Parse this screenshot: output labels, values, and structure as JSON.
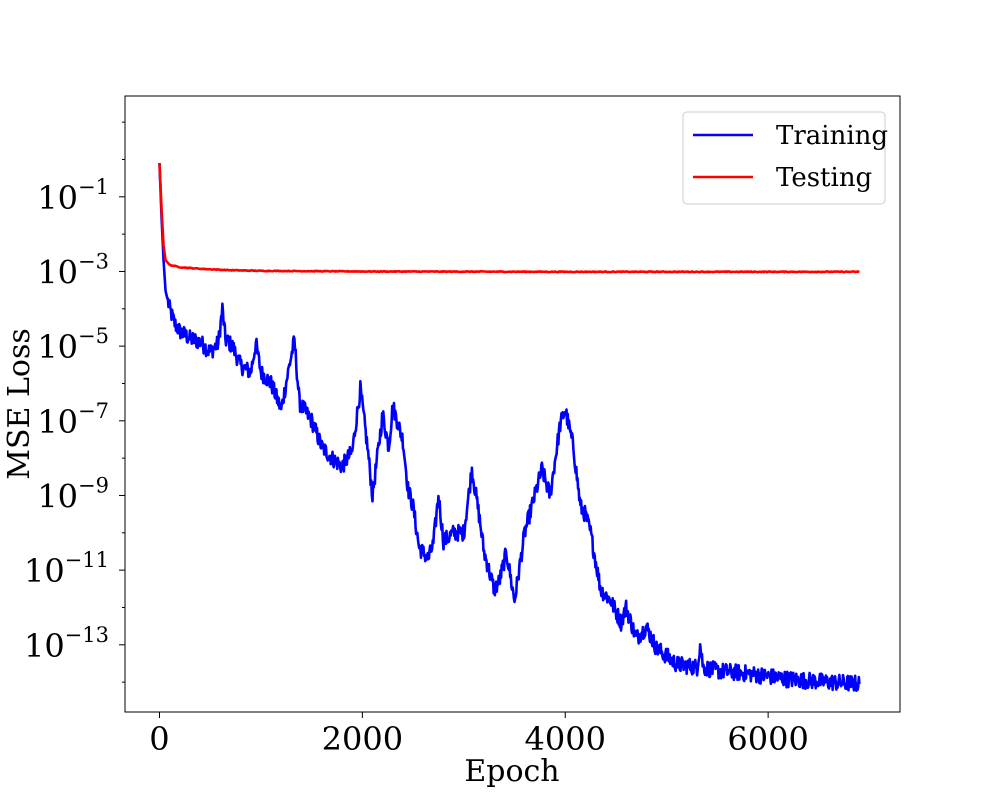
{
  "chart_data": {
    "type": "line",
    "title": "",
    "xlabel": "Epoch",
    "ylabel": "MSE Loss",
    "xlim": [
      -340,
      7300
    ],
    "ylim_log10": [
      -14.8,
      1.7
    ],
    "yscale": "log",
    "grid": false,
    "legend_position": "top-right",
    "x_ticks": [
      {
        "value": 0,
        "label": "0"
      },
      {
        "value": 2000,
        "label": "2000"
      },
      {
        "value": 4000,
        "label": "4000"
      },
      {
        "value": 6000,
        "label": "6000"
      }
    ],
    "y_ticks": [
      {
        "value": 0.1,
        "base": "10",
        "exp": "−1"
      },
      {
        "value": 0.001,
        "base": "10",
        "exp": "−3"
      },
      {
        "value": 1e-05,
        "base": "10",
        "exp": "−5"
      },
      {
        "value": 1e-07,
        "base": "10",
        "exp": "−7"
      },
      {
        "value": 1e-09,
        "base": "10",
        "exp": "−9"
      },
      {
        "value": 1e-11,
        "base": "10",
        "exp": "−11"
      },
      {
        "value": 1e-13,
        "base": "10",
        "exp": "−13"
      }
    ],
    "series": [
      {
        "name": "Training",
        "color": "#0000ff",
        "points": [
          [
            0,
            0.8
          ],
          [
            20,
            0.03
          ],
          [
            40,
            0.002
          ],
          [
            60,
            0.0003
          ],
          [
            100,
            0.0001
          ],
          [
            150,
            4e-05
          ],
          [
            200,
            2.5e-05
          ],
          [
            300,
            1.6e-05
          ],
          [
            400,
            1.3e-05
          ],
          [
            500,
            7e-06
          ],
          [
            580,
            1.2e-05
          ],
          [
            620,
            0.0001
          ],
          [
            650,
            1.5e-05
          ],
          [
            720,
            1e-05
          ],
          [
            800,
            3e-06
          ],
          [
            900,
            2e-06
          ],
          [
            950,
            1.2e-05
          ],
          [
            1000,
            2e-06
          ],
          [
            1100,
            1e-06
          ],
          [
            1200,
            2e-07
          ],
          [
            1280,
            3e-06
          ],
          [
            1330,
            1.4e-05
          ],
          [
            1380,
            3e-07
          ],
          [
            1500,
            1e-07
          ],
          [
            1600,
            2e-08
          ],
          [
            1700,
            1e-08
          ],
          [
            1800,
            6e-09
          ],
          [
            1900,
            1.5e-08
          ],
          [
            1980,
            7e-07
          ],
          [
            2050,
            2e-08
          ],
          [
            2100,
            1e-09
          ],
          [
            2200,
            1.5e-07
          ],
          [
            2260,
            2e-08
          ],
          [
            2300,
            2.5e-07
          ],
          [
            2400,
            3e-08
          ],
          [
            2450,
            1.5e-09
          ],
          [
            2500,
            5e-10
          ],
          [
            2560,
            4e-11
          ],
          [
            2650,
            2e-11
          ],
          [
            2700,
            5e-11
          ],
          [
            2750,
            1e-09
          ],
          [
            2800,
            6e-11
          ],
          [
            2900,
            1e-10
          ],
          [
            3000,
            1e-10
          ],
          [
            3080,
            5e-09
          ],
          [
            3150,
            3e-10
          ],
          [
            3200,
            3e-11
          ],
          [
            3300,
            3e-12
          ],
          [
            3350,
            5e-12
          ],
          [
            3420,
            3e-11
          ],
          [
            3500,
            1.5e-12
          ],
          [
            3600,
            1e-10
          ],
          [
            3700,
            1e-09
          ],
          [
            3770,
            5e-09
          ],
          [
            3850,
            1e-09
          ],
          [
            3950,
            8e-08
          ],
          [
            4000,
            2e-07
          ],
          [
            4080,
            2e-08
          ],
          [
            4150,
            5e-10
          ],
          [
            4200,
            3e-10
          ],
          [
            4250,
            1e-10
          ],
          [
            4350,
            3e-12
          ],
          [
            4450,
            1.5e-12
          ],
          [
            4550,
            4e-13
          ],
          [
            4600,
            1e-12
          ],
          [
            4700,
            1.5e-13
          ],
          [
            4800,
            3e-13
          ],
          [
            4900,
            8e-14
          ],
          [
            5000,
            5e-14
          ],
          [
            5100,
            3e-14
          ],
          [
            5300,
            2.5e-14
          ],
          [
            5330,
            1e-13
          ],
          [
            5360,
            2.5e-14
          ],
          [
            5500,
            2e-14
          ],
          [
            5800,
            1.7e-14
          ],
          [
            6200,
            1.2e-14
          ],
          [
            6600,
            1e-14
          ],
          [
            6900,
            9e-15
          ]
        ]
      },
      {
        "name": "Testing",
        "color": "#ff0000",
        "points": [
          [
            0,
            0.8
          ],
          [
            20,
            0.05
          ],
          [
            40,
            0.005
          ],
          [
            60,
            0.002
          ],
          [
            100,
            0.0015
          ],
          [
            200,
            0.0013
          ],
          [
            400,
            0.00118
          ],
          [
            700,
            0.00108
          ],
          [
            1000,
            0.00104
          ],
          [
            2000,
            0.001
          ],
          [
            4000,
            0.00098
          ],
          [
            6900,
            0.00098
          ]
        ]
      }
    ]
  }
}
